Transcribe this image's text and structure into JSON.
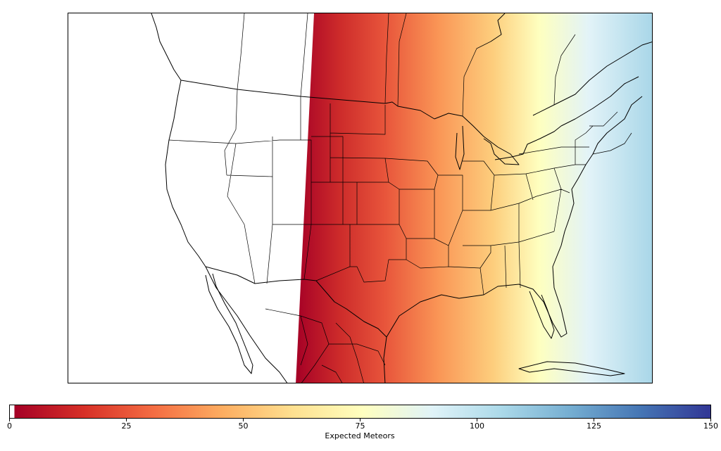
{
  "colorbar": {
    "label": "Expected Meteors",
    "min": 0,
    "max": 150,
    "ticks": [
      "0",
      "25",
      "50",
      "75",
      "100",
      "125",
      "150"
    ],
    "colormap": "RdYlBu",
    "stops": [
      "#ffffff",
      "#a50026",
      "#d73027",
      "#f46d43",
      "#fdae61",
      "#fee090",
      "#ffffbf",
      "#e0f3f8",
      "#abd9e9",
      "#74add1",
      "#4575b4",
      "#313695"
    ]
  },
  "chart_data": {
    "type": "heatmap",
    "region": "North America (contiguous US, southern Canada, northern Mexico)",
    "field": "Expected Meteors",
    "gradient_direction": "west-to-east",
    "zero_region": "west of the terminator line",
    "values_along_east_edge": {
      "west_edge_of_shaded": 2,
      "east_edge_of_map": 95
    },
    "colorbar_range": [
      0,
      150
    ]
  }
}
